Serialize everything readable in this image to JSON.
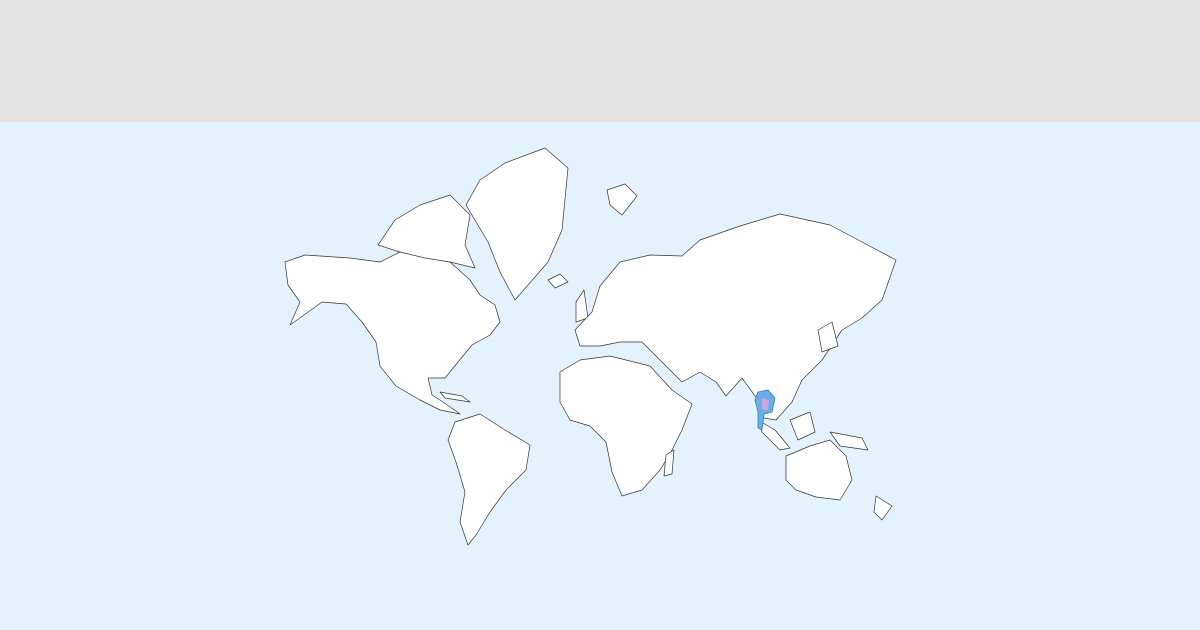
{
  "colors": {
    "header_background": "#e5e4e0",
    "ocean": "#e4f2fd",
    "land": "#ffffff",
    "border": "#333333",
    "highlight_fill": "#6aaee8",
    "highlight_inner": "#c9a6dc",
    "highlight_stroke": "#2a7fd0"
  },
  "map": {
    "projection": "mercator"
  }
}
